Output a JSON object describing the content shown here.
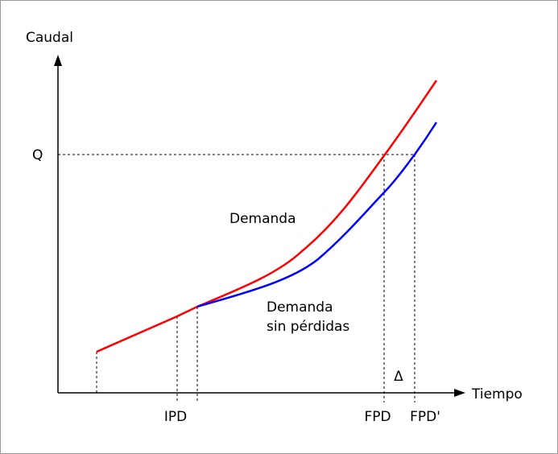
{
  "axes": {
    "y_label": "Caudal",
    "x_label": "Tiempo",
    "y_mark": "Q"
  },
  "x_marks": [
    "IPD",
    "FPD",
    "FPD'"
  ],
  "delta": "Δ",
  "curves": [
    {
      "label": [
        "Demanda"
      ]
    },
    {
      "label": [
        "Demanda",
        "sin pérdidas"
      ]
    }
  ]
}
